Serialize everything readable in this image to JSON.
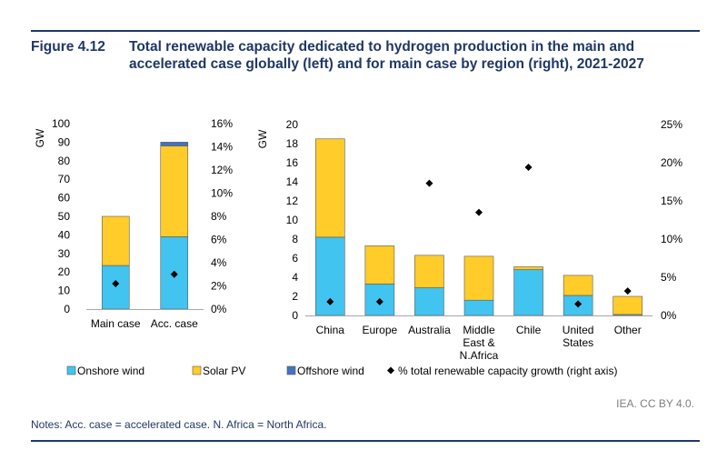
{
  "figure": {
    "number": "Figure 4.12",
    "title": "Total renewable capacity dedicated to hydrogen production in the main and accelerated case globally (left) and for main case by region (right), 2021-2027"
  },
  "colors": {
    "onshore": "#41c4f0",
    "solar": "#ffcc29",
    "offshore": "#4472c4",
    "marker": "#000000",
    "header": "#1f3864"
  },
  "chart_data": [
    {
      "type": "bar",
      "stacked": true,
      "categories": [
        "Main case",
        "Acc. case"
      ],
      "series": [
        {
          "name": "Onshore wind",
          "values": [
            23.5,
            39
          ]
        },
        {
          "name": "Solar PV",
          "values": [
            26.5,
            49
          ]
        },
        {
          "name": "Offshore wind",
          "values": [
            0,
            2
          ]
        }
      ],
      "secondary_series": {
        "name": "% total renewable capacity growth (right axis)",
        "values": [
          2.2,
          3.0
        ]
      },
      "ylabel": "GW",
      "ylim": [
        0,
        100
      ],
      "yticks": [
        "0",
        "10",
        "20",
        "30",
        "40",
        "50",
        "60",
        "70",
        "80",
        "90",
        "100"
      ],
      "y2lim": [
        0,
        16
      ],
      "y2ticks": [
        "0%",
        "2%",
        "4%",
        "6%",
        "8%",
        "10%",
        "12%",
        "14%",
        "16%"
      ]
    },
    {
      "type": "bar",
      "stacked": true,
      "categories": [
        "China",
        "Europe",
        "Australia",
        "Middle East & N.Africa",
        "Chile",
        "United States",
        "Other"
      ],
      "category_lines": [
        [
          "China"
        ],
        [
          "Europe"
        ],
        [
          "Australia"
        ],
        [
          "Middle",
          "East &",
          "N.Africa"
        ],
        [
          "Chile"
        ],
        [
          "United",
          "States"
        ],
        [
          "Other"
        ]
      ],
      "series": [
        {
          "name": "Onshore wind",
          "values": [
            8.2,
            3.3,
            2.9,
            1.6,
            4.8,
            2.1,
            0.1
          ]
        },
        {
          "name": "Solar PV",
          "values": [
            10.3,
            4.0,
            3.4,
            4.6,
            0.3,
            2.1,
            1.9
          ]
        },
        {
          "name": "Offshore wind",
          "values": [
            0,
            0,
            0,
            0,
            0,
            0,
            0
          ]
        }
      ],
      "secondary_series": {
        "name": "% total renewable capacity growth (right axis)",
        "values": [
          1.8,
          1.8,
          17.3,
          13.5,
          19.4,
          1.5,
          3.2
        ]
      },
      "ylabel": "GW",
      "ylim": [
        0,
        20
      ],
      "yticks": [
        "0",
        "2",
        "4",
        "6",
        "8",
        "10",
        "12",
        "14",
        "16",
        "18",
        "20"
      ],
      "y2lim": [
        0,
        25
      ],
      "y2ticks": [
        "0%",
        "5%",
        "10%",
        "15%",
        "20%",
        "25%"
      ]
    }
  ],
  "legend": {
    "onshore": "Onshore wind",
    "solar": "Solar PV",
    "offshore": "Offshore wind",
    "marker": "% total renewable capacity growth (right axis)"
  },
  "credit": "IEA. CC BY 4.0.",
  "notes": "Notes: Acc. case = accelerated case. N. Africa = North Africa."
}
